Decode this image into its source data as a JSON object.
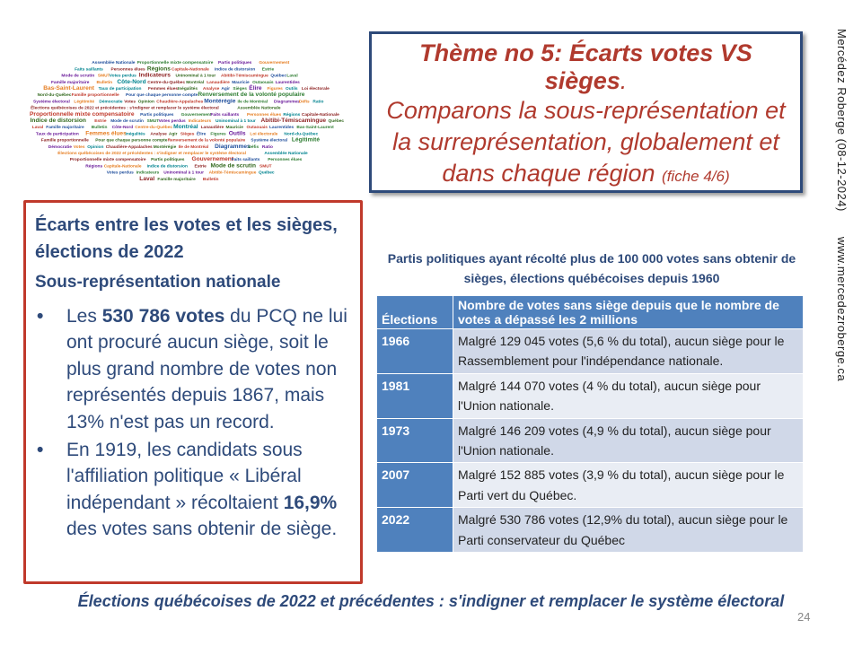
{
  "wordcloud": {
    "words": [
      "Élections québécoises de 2022 et précédentes : s'indigner et remplacer le système électoral",
      "Assemblée Nationale",
      "Proportionnelle mixte compensatoire",
      "Partis politiques",
      "Gouvernement",
      "Faits saillants",
      "Personnes élues",
      "Régions",
      "Capitale-Nationale",
      "Indice de distorsion",
      "Estrie",
      "Mode de scrutin",
      "SMUT",
      "Votes perdus",
      "Indicateurs",
      "Uninominal à 1 tour",
      "Abitibi-Témiscamingue",
      "Québec",
      "Laval",
      "Famille majoritaire",
      "Bulletin",
      "Côte-Nord",
      "Centre-du-Québec",
      "Montréal",
      "Lanaudière",
      "Mauricie",
      "Outaouais",
      "Laurentides",
      "Bas-Saint-Laurent",
      "Taux de participation",
      "Femmes élues",
      "Inégalités",
      "Analyse",
      "Agir",
      "Sièges",
      "Élire",
      "Figures",
      "Outils",
      "Loi électorale",
      "Nord-du-Québec",
      "Famille proportionnelle",
      "Pour que chaque personne compte",
      "Renversement de la volonté populaire",
      "Système électoral",
      "Légitimité",
      "Démocratie",
      "Votes",
      "Opinion",
      "Chaudière-Appalaches",
      "Montérégie",
      "Ile de Montréal",
      "Diagrammes",
      "Défis",
      "Ratio"
    ]
  },
  "theme": {
    "title": "Thème no 5: Écarts votes VS sièges",
    "title_period": ".",
    "subtitle": "Comparons la sous-représentation et la surreprésentation, globalement et dans chaque région",
    "fiche": "(fiche 4/6)"
  },
  "side": {
    "author": "Mercédez Roberge   (08-12-2024)",
    "website": "www.mercedezroberge.ca"
  },
  "left": {
    "title": "Écarts entre les votes et les sièges,  élections de 2022",
    "subtitle": "Sous-représentation nationale",
    "bullet_symbol": "•",
    "bullet1": {
      "before": "Les ",
      "bold": "530 786 votes",
      "after": " du PCQ ne lui ont procuré aucun siège, soit le plus grand nombre de votes non représentés depuis 1867, mais 13% n'est pas un record."
    },
    "bullet2": {
      "before": "En 1919, les candidats sous l'affiliation politique « Libéral indépendant » récoltaient ",
      "bold": "16,9%",
      "after": " des votes sans obtenir de siège."
    }
  },
  "table": {
    "title": "Partis politiques ayant récolté plus de 100 000 votes sans obtenir de sièges, élections québécoises depuis 1960",
    "headers": {
      "col1": "Élections",
      "col2": "Nombre de votes sans siège depuis que le nombre de votes a dépassé les 2 millions"
    },
    "rows": [
      {
        "year": "1966",
        "text": "Malgré 129 045 votes (5,6 % du total),  aucun siège pour le Rassemblement pour l'indépendance nationale."
      },
      {
        "year": "1981",
        "text": "Malgré 144 070 votes (4 % du total),  aucun siège pour l'Union nationale."
      },
      {
        "year": "1973",
        "text": "Malgré 146 209 votes (4,9 % du total),  aucun siège pour l'Union nationale."
      },
      {
        "year": "2007",
        "text": "Malgré 152 885 votes (3,9 % du total),  aucun siège pour le Parti vert du Québec."
      },
      {
        "year": "2022",
        "text": "Malgré 530 786 votes (12,9% du total),  aucun siège pour le Parti conservateur du Québec"
      }
    ]
  },
  "footer": "Élections québécoises de 2022 et précédentes : s'indigner et remplacer le système électoral",
  "page_number": "24",
  "colors": {
    "navy": "#2e4a7a",
    "red": "#b03a2e",
    "table_blue": "#4f81bd"
  }
}
